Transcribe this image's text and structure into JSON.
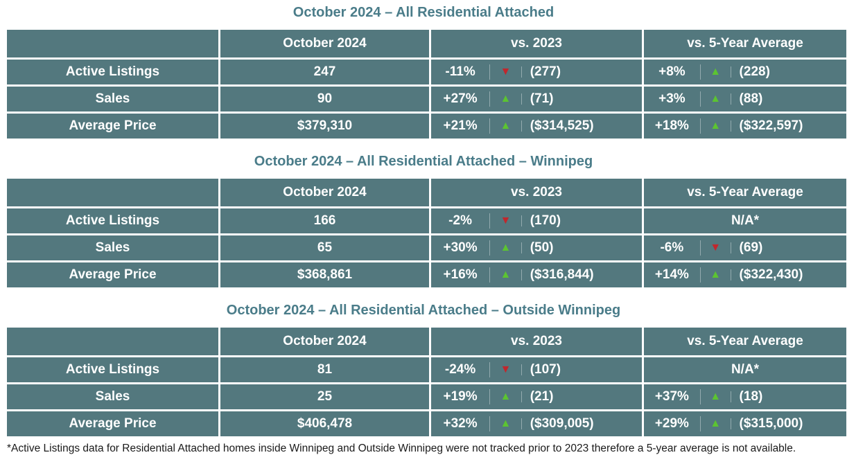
{
  "colors": {
    "cell_teal": "#53787E",
    "title_teal": "#4A7C89",
    "up_green": "#5CC431",
    "down_red": "#C1272D",
    "border_white": "#FFFFFF"
  },
  "headers": {
    "metric": "",
    "current": "October 2024",
    "vs2023": "vs. 2023",
    "vs5yr": "vs. 5-Year Average"
  },
  "tables": [
    {
      "title": "October 2024 – All Residential Attached",
      "rows": [
        {
          "label": "Active Listings",
          "value": "247",
          "vs2023": {
            "pct": "-11%",
            "dir": "down",
            "arrow": "▼",
            "ref": "(277)"
          },
          "vs5yr": {
            "pct": "+8%",
            "dir": "up",
            "arrow": "▲",
            "ref": "(228)"
          }
        },
        {
          "label": "Sales",
          "value": "90",
          "vs2023": {
            "pct": "+27%",
            "dir": "up",
            "arrow": "▲",
            "ref": "(71)"
          },
          "vs5yr": {
            "pct": "+3%",
            "dir": "up",
            "arrow": "▲",
            "ref": "(88)"
          }
        },
        {
          "label": "Average Price",
          "value": "$379,310",
          "vs2023": {
            "pct": "+21%",
            "dir": "up",
            "arrow": "▲",
            "ref": "($314,525)"
          },
          "vs5yr": {
            "pct": "+18%",
            "dir": "up",
            "arrow": "▲",
            "ref": "($322,597)"
          }
        }
      ]
    },
    {
      "title": "October 2024 – All Residential Attached – Winnipeg",
      "rows": [
        {
          "label": "Active Listings",
          "value": "166",
          "vs2023": {
            "pct": "-2%",
            "dir": "down",
            "arrow": "▼",
            "ref": "(170)"
          },
          "vs5yr": {
            "na": "N/A*"
          }
        },
        {
          "label": "Sales",
          "value": "65",
          "vs2023": {
            "pct": "+30%",
            "dir": "up",
            "arrow": "▲",
            "ref": "(50)"
          },
          "vs5yr": {
            "pct": "-6%",
            "dir": "down",
            "arrow": "▼",
            "ref": "(69)"
          }
        },
        {
          "label": "Average Price",
          "value": "$368,861",
          "vs2023": {
            "pct": "+16%",
            "dir": "up",
            "arrow": "▲",
            "ref": "($316,844)"
          },
          "vs5yr": {
            "pct": "+14%",
            "dir": "up",
            "arrow": "▲",
            "ref": "($322,430)"
          }
        }
      ]
    },
    {
      "title": "October 2024 – All Residential Attached – Outside Winnipeg",
      "rows": [
        {
          "label": "Active Listings",
          "value": "81",
          "vs2023": {
            "pct": "-24%",
            "dir": "down",
            "arrow": "▼",
            "ref": "(107)"
          },
          "vs5yr": {
            "na": "N/A*"
          }
        },
        {
          "label": "Sales",
          "value": "25",
          "vs2023": {
            "pct": "+19%",
            "dir": "up",
            "arrow": "▲",
            "ref": "(21)"
          },
          "vs5yr": {
            "pct": "+37%",
            "dir": "up",
            "arrow": "▲",
            "ref": "(18)"
          }
        },
        {
          "label": "Average Price",
          "value": "$406,478",
          "vs2023": {
            "pct": "+32%",
            "dir": "up",
            "arrow": "▲",
            "ref": "($309,005)"
          },
          "vs5yr": {
            "pct": "+29%",
            "dir": "up",
            "arrow": "▲",
            "ref": "($315,000)"
          }
        }
      ]
    }
  ],
  "footnote": "*Active Listings data for Residential Attached homes inside Winnipeg and Outside Winnipeg were not tracked prior to 2023 therefore a 5-year average is not available."
}
